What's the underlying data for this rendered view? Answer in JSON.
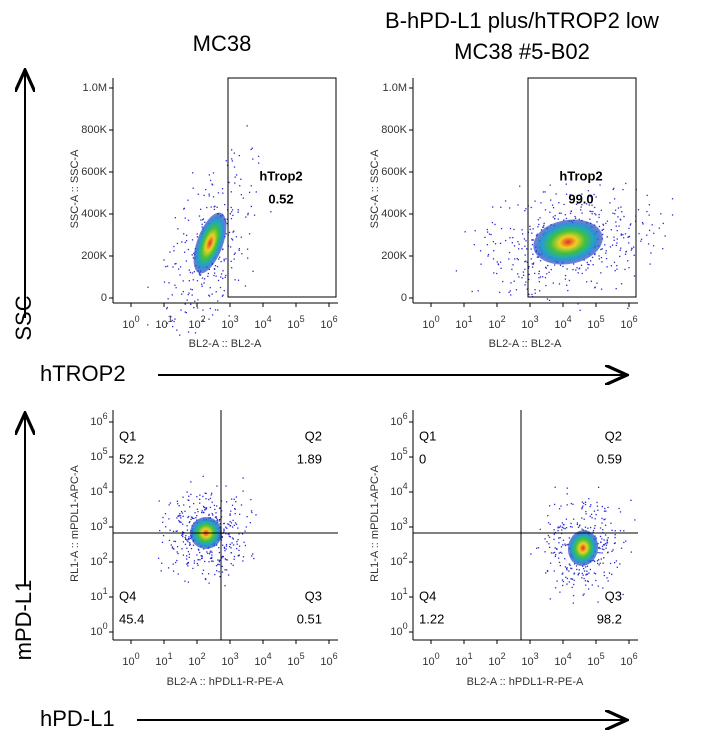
{
  "titles": [
    [
      "MC38"
    ],
    [
      "B-hPD-L1 plus/hTROP2 low",
      "MC38 #5-B02"
    ]
  ],
  "rows": [
    {
      "y_label": "SSC",
      "x_label": "hTROP2"
    },
    {
      "y_label": "mPD-L1",
      "x_label": "hPD-L1"
    }
  ],
  "log_tick": {
    "base": "10",
    "exponents": [
      "0",
      "1",
      "2",
      "3",
      "4",
      "5",
      "6"
    ]
  },
  "ssc_ticks": [
    "1.0M",
    "800K",
    "600K",
    "400K",
    "200K",
    "0"
  ],
  "top_panels": [
    {
      "x_axis": "BL2-A :: BL2-A",
      "y_axis": "SSC-A :: SSC-A",
      "gate": "hTrop2",
      "value": "0.52"
    },
    {
      "x_axis": "BL2-A :: BL2-A",
      "y_axis": "SSC-A :: SSC-A",
      "gate": "hTrop2",
      "value": "99.0"
    }
  ],
  "bottom_panels": [
    {
      "x_axis": "BL2-A :: hPDL1-R-PE-A",
      "y_axis": "RL1-A :: mPDL1-APC-A",
      "quadrants": [
        {
          "name": "Q1",
          "value": "52.2"
        },
        {
          "name": "Q2",
          "value": "1.89"
        },
        {
          "name": "Q4",
          "value": "45.4"
        },
        {
          "name": "Q3",
          "value": "0.51"
        }
      ]
    },
    {
      "x_axis": "BL2-A :: hPDL1-R-PE-A",
      "y_axis": "RL1-A :: mPDL1-APC-A",
      "quadrants": [
        {
          "name": "Q1",
          "value": "0"
        },
        {
          "name": "Q2",
          "value": "0.59"
        },
        {
          "name": "Q4",
          "value": "1.22"
        },
        {
          "name": "Q3",
          "value": "98.2"
        }
      ]
    }
  ]
}
